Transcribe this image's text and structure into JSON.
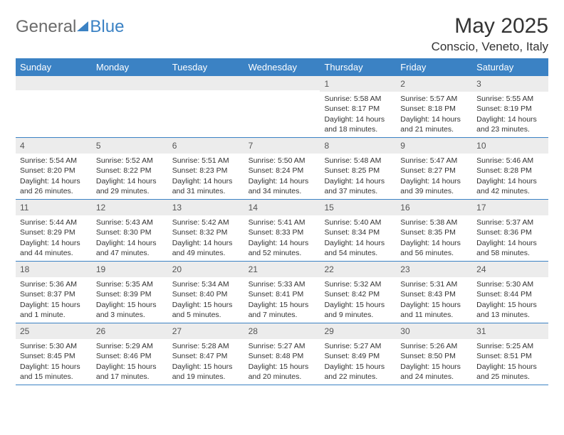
{
  "brand": {
    "word1": "General",
    "word2": "Blue"
  },
  "title": "May 2025",
  "location": "Conscio, Veneto, Italy",
  "colors": {
    "accent": "#3B82C4",
    "header_bg": "#3B82C4",
    "header_text": "#ffffff",
    "daynum_bg": "#ececec",
    "text": "#333333",
    "border": "#3B82C4"
  },
  "dow": [
    "Sunday",
    "Monday",
    "Tuesday",
    "Wednesday",
    "Thursday",
    "Friday",
    "Saturday"
  ],
  "weeks": [
    [
      {
        "n": "",
        "sr": "",
        "ss": "",
        "dl": ""
      },
      {
        "n": "",
        "sr": "",
        "ss": "",
        "dl": ""
      },
      {
        "n": "",
        "sr": "",
        "ss": "",
        "dl": ""
      },
      {
        "n": "",
        "sr": "",
        "ss": "",
        "dl": ""
      },
      {
        "n": "1",
        "sr": "Sunrise: 5:58 AM",
        "ss": "Sunset: 8:17 PM",
        "dl": "Daylight: 14 hours and 18 minutes."
      },
      {
        "n": "2",
        "sr": "Sunrise: 5:57 AM",
        "ss": "Sunset: 8:18 PM",
        "dl": "Daylight: 14 hours and 21 minutes."
      },
      {
        "n": "3",
        "sr": "Sunrise: 5:55 AM",
        "ss": "Sunset: 8:19 PM",
        "dl": "Daylight: 14 hours and 23 minutes."
      }
    ],
    [
      {
        "n": "4",
        "sr": "Sunrise: 5:54 AM",
        "ss": "Sunset: 8:20 PM",
        "dl": "Daylight: 14 hours and 26 minutes."
      },
      {
        "n": "5",
        "sr": "Sunrise: 5:52 AM",
        "ss": "Sunset: 8:22 PM",
        "dl": "Daylight: 14 hours and 29 minutes."
      },
      {
        "n": "6",
        "sr": "Sunrise: 5:51 AM",
        "ss": "Sunset: 8:23 PM",
        "dl": "Daylight: 14 hours and 31 minutes."
      },
      {
        "n": "7",
        "sr": "Sunrise: 5:50 AM",
        "ss": "Sunset: 8:24 PM",
        "dl": "Daylight: 14 hours and 34 minutes."
      },
      {
        "n": "8",
        "sr": "Sunrise: 5:48 AM",
        "ss": "Sunset: 8:25 PM",
        "dl": "Daylight: 14 hours and 37 minutes."
      },
      {
        "n": "9",
        "sr": "Sunrise: 5:47 AM",
        "ss": "Sunset: 8:27 PM",
        "dl": "Daylight: 14 hours and 39 minutes."
      },
      {
        "n": "10",
        "sr": "Sunrise: 5:46 AM",
        "ss": "Sunset: 8:28 PM",
        "dl": "Daylight: 14 hours and 42 minutes."
      }
    ],
    [
      {
        "n": "11",
        "sr": "Sunrise: 5:44 AM",
        "ss": "Sunset: 8:29 PM",
        "dl": "Daylight: 14 hours and 44 minutes."
      },
      {
        "n": "12",
        "sr": "Sunrise: 5:43 AM",
        "ss": "Sunset: 8:30 PM",
        "dl": "Daylight: 14 hours and 47 minutes."
      },
      {
        "n": "13",
        "sr": "Sunrise: 5:42 AM",
        "ss": "Sunset: 8:32 PM",
        "dl": "Daylight: 14 hours and 49 minutes."
      },
      {
        "n": "14",
        "sr": "Sunrise: 5:41 AM",
        "ss": "Sunset: 8:33 PM",
        "dl": "Daylight: 14 hours and 52 minutes."
      },
      {
        "n": "15",
        "sr": "Sunrise: 5:40 AM",
        "ss": "Sunset: 8:34 PM",
        "dl": "Daylight: 14 hours and 54 minutes."
      },
      {
        "n": "16",
        "sr": "Sunrise: 5:38 AM",
        "ss": "Sunset: 8:35 PM",
        "dl": "Daylight: 14 hours and 56 minutes."
      },
      {
        "n": "17",
        "sr": "Sunrise: 5:37 AM",
        "ss": "Sunset: 8:36 PM",
        "dl": "Daylight: 14 hours and 58 minutes."
      }
    ],
    [
      {
        "n": "18",
        "sr": "Sunrise: 5:36 AM",
        "ss": "Sunset: 8:37 PM",
        "dl": "Daylight: 15 hours and 1 minute."
      },
      {
        "n": "19",
        "sr": "Sunrise: 5:35 AM",
        "ss": "Sunset: 8:39 PM",
        "dl": "Daylight: 15 hours and 3 minutes."
      },
      {
        "n": "20",
        "sr": "Sunrise: 5:34 AM",
        "ss": "Sunset: 8:40 PM",
        "dl": "Daylight: 15 hours and 5 minutes."
      },
      {
        "n": "21",
        "sr": "Sunrise: 5:33 AM",
        "ss": "Sunset: 8:41 PM",
        "dl": "Daylight: 15 hours and 7 minutes."
      },
      {
        "n": "22",
        "sr": "Sunrise: 5:32 AM",
        "ss": "Sunset: 8:42 PM",
        "dl": "Daylight: 15 hours and 9 minutes."
      },
      {
        "n": "23",
        "sr": "Sunrise: 5:31 AM",
        "ss": "Sunset: 8:43 PM",
        "dl": "Daylight: 15 hours and 11 minutes."
      },
      {
        "n": "24",
        "sr": "Sunrise: 5:30 AM",
        "ss": "Sunset: 8:44 PM",
        "dl": "Daylight: 15 hours and 13 minutes."
      }
    ],
    [
      {
        "n": "25",
        "sr": "Sunrise: 5:30 AM",
        "ss": "Sunset: 8:45 PM",
        "dl": "Daylight: 15 hours and 15 minutes."
      },
      {
        "n": "26",
        "sr": "Sunrise: 5:29 AM",
        "ss": "Sunset: 8:46 PM",
        "dl": "Daylight: 15 hours and 17 minutes."
      },
      {
        "n": "27",
        "sr": "Sunrise: 5:28 AM",
        "ss": "Sunset: 8:47 PM",
        "dl": "Daylight: 15 hours and 19 minutes."
      },
      {
        "n": "28",
        "sr": "Sunrise: 5:27 AM",
        "ss": "Sunset: 8:48 PM",
        "dl": "Daylight: 15 hours and 20 minutes."
      },
      {
        "n": "29",
        "sr": "Sunrise: 5:27 AM",
        "ss": "Sunset: 8:49 PM",
        "dl": "Daylight: 15 hours and 22 minutes."
      },
      {
        "n": "30",
        "sr": "Sunrise: 5:26 AM",
        "ss": "Sunset: 8:50 PM",
        "dl": "Daylight: 15 hours and 24 minutes."
      },
      {
        "n": "31",
        "sr": "Sunrise: 5:25 AM",
        "ss": "Sunset: 8:51 PM",
        "dl": "Daylight: 15 hours and 25 minutes."
      }
    ]
  ]
}
